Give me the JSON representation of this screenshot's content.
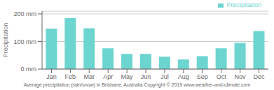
{
  "chart_data": {
    "type": "bar",
    "title": "Average precipitation (rain/snow) in Brisbane, Australia   Copyright © 2019 www.weather-and-climate.com",
    "ylabel": "Precipitation",
    "categories": [
      "Jan",
      "Feb",
      "Mar",
      "Apr",
      "May",
      "Jun",
      "Jul",
      "Aug",
      "Sep",
      "Oct",
      "Nov",
      "Dec"
    ],
    "series": [
      {
        "name": "Precipitation",
        "color": "#6dd5d0",
        "values": [
          147,
          185,
          148,
          75,
          55,
          55,
          45,
          35,
          47,
          75,
          95,
          138
        ]
      }
    ],
    "ylim": [
      0,
      210
    ],
    "yticks": [
      {
        "value": 0,
        "label": "0 mm"
      },
      {
        "value": 100,
        "label": "100 mm"
      },
      {
        "value": 200,
        "label": "200 mm"
      }
    ],
    "grid": true,
    "legend": "upper right"
  }
}
